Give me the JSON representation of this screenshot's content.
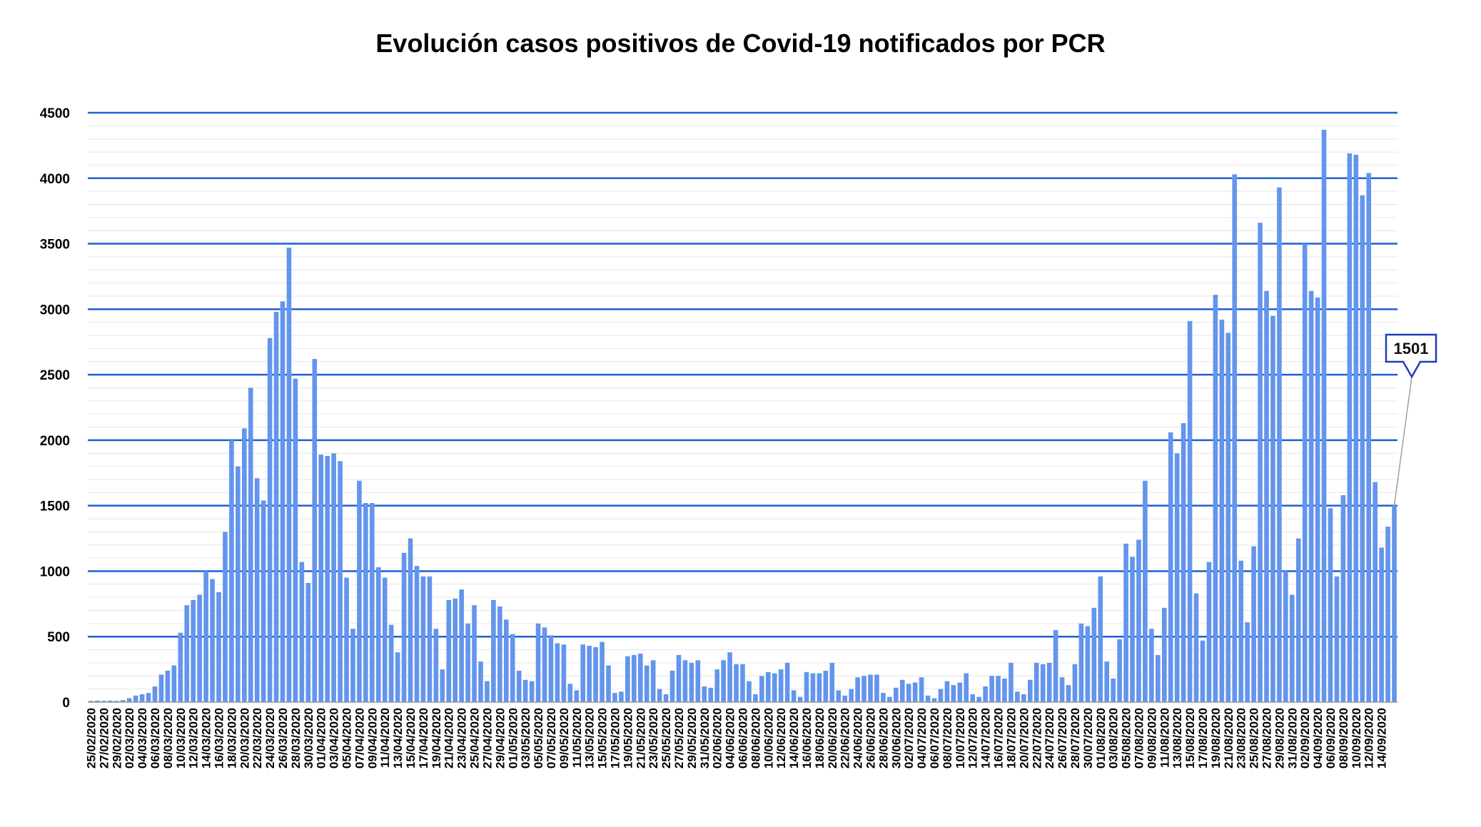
{
  "chart_data": {
    "type": "bar",
    "title": "Evolución casos positivos de Covid-19 notificados por PCR",
    "xlabel": "",
    "ylabel": "",
    "ylim": [
      0,
      4500
    ],
    "yticks": [
      0,
      500,
      1000,
      1500,
      2000,
      2500,
      3000,
      3500,
      4000,
      4500
    ],
    "grid": true,
    "bar_color": "#6495ed",
    "gridline_color": "#1f5fd1",
    "start_date": "2020-02-25",
    "tick_step_days": 2,
    "values": [
      10,
      12,
      10,
      12,
      10,
      15,
      30,
      50,
      60,
      70,
      120,
      210,
      240,
      280,
      530,
      740,
      780,
      820,
      1000,
      940,
      840,
      1300,
      2000,
      1800,
      2090,
      2400,
      1710,
      1540,
      2780,
      2980,
      3060,
      3470,
      2470,
      1070,
      910,
      2620,
      1890,
      1880,
      1900,
      1840,
      950,
      560,
      1690,
      1520,
      1520,
      1030,
      950,
      590,
      380,
      1140,
      1250,
      1040,
      960,
      960,
      560,
      250,
      780,
      790,
      860,
      600,
      740,
      310,
      160,
      780,
      730,
      630,
      520,
      240,
      170,
      160,
      600,
      570,
      510,
      450,
      440,
      140,
      90,
      440,
      430,
      420,
      460,
      280,
      70,
      80,
      350,
      360,
      370,
      280,
      320,
      100,
      60,
      240,
      360,
      320,
      300,
      320,
      120,
      110,
      250,
      320,
      380,
      290,
      290,
      160,
      60,
      200,
      230,
      220,
      250,
      300,
      90,
      40,
      230,
      220,
      220,
      240,
      300,
      90,
      50,
      100,
      190,
      200,
      210,
      210,
      70,
      40,
      110,
      170,
      140,
      150,
      190,
      50,
      30,
      100,
      160,
      130,
      150,
      220,
      60,
      40,
      120,
      200,
      200,
      180,
      300,
      80,
      60,
      170,
      300,
      290,
      300,
      550,
      190,
      130,
      290,
      600,
      580,
      720,
      960,
      310,
      180,
      480,
      1210,
      1110,
      1240,
      1690,
      560,
      360,
      720,
      2060,
      1900,
      2130,
      2910,
      830,
      470,
      1070,
      3110,
      2920,
      2820,
      4030,
      1080,
      610,
      1190,
      3660,
      3140,
      2950,
      3930,
      1000,
      820,
      1250,
      3500,
      3140,
      3090,
      4370,
      1480,
      960,
      1580,
      4190,
      4180,
      3870,
      4040,
      1680,
      1180,
      1340,
      1501
    ],
    "x_tick_labels": [
      "25/02/2020",
      "27/02/2020",
      "29/02/2020",
      "02/03/2020",
      "04/03/2020",
      "06/03/2020",
      "08/03/2020",
      "10/03/2020",
      "12/03/2020",
      "14/03/2020",
      "16/03/2020",
      "18/03/2020",
      "20/03/2020",
      "22/03/2020",
      "24/03/2020",
      "26/03/2020",
      "28/03/2020",
      "30/03/2020",
      "01/04/2020",
      "03/04/2020",
      "05/04/2020",
      "07/04/2020",
      "09/04/2020",
      "11/04/2020",
      "13/04/2020",
      "15/04/2020",
      "17/04/2020",
      "19/04/2020",
      "21/04/2020",
      "23/04/2020",
      "25/04/2020",
      "27/04/2020",
      "29/04/2020",
      "01/05/2020",
      "03/05/2020",
      "05/05/2020",
      "07/05/2020",
      "09/05/2020",
      "11/05/2020",
      "13/05/2020",
      "15/05/2020",
      "17/05/2020",
      "19/05/2020",
      "21/05/2020",
      "23/05/2020",
      "25/05/2020",
      "27/05/2020",
      "29/05/2020",
      "31/05/2020",
      "02/06/2020",
      "04/06/2020",
      "06/06/2020",
      "08/06/2020",
      "10/06/2020",
      "12/06/2020",
      "14/06/2020",
      "16/06/2020",
      "18/06/2020",
      "20/06/2020",
      "22/06/2020",
      "24/06/2020",
      "26/06/2020",
      "28/06/2020",
      "30/06/2020",
      "02/07/2020",
      "04/07/2020",
      "06/07/2020",
      "08/07/2020",
      "10/07/2020",
      "12/07/2020",
      "14/07/2020",
      "16/07/2020",
      "18/07/2020",
      "20/07/2020",
      "22/07/2020",
      "24/07/2020",
      "26/07/2020",
      "28/07/2020",
      "30/07/2020",
      "01/08/2020",
      "03/08/2020",
      "05/08/2020",
      "07/08/2020",
      "09/08/2020",
      "11/08/2020",
      "13/08/2020",
      "15/08/2020",
      "17/08/2020",
      "19/08/2020",
      "21/08/2020",
      "23/08/2020",
      "25/08/2020",
      "27/08/2020",
      "29/08/2020",
      "31/08/2020",
      "02/09/2020",
      "04/09/2020",
      "06/09/2020",
      "08/09/2020",
      "10/09/2020",
      "12/09/2020",
      "14/09/2020"
    ],
    "annotation": {
      "label": "1501",
      "series_index_from_end": 1
    }
  }
}
